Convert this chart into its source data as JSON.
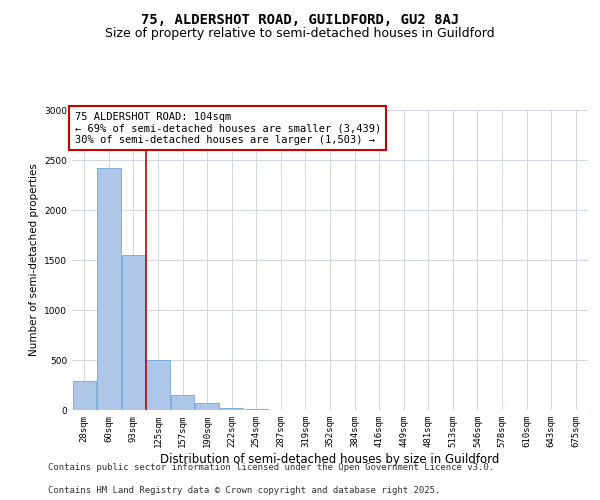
{
  "title_line1": "75, ALDERSHOT ROAD, GUILDFORD, GU2 8AJ",
  "title_line2": "Size of property relative to semi-detached houses in Guildford",
  "xlabel": "Distribution of semi-detached houses by size in Guildford",
  "ylabel": "Number of semi-detached properties",
  "categories": [
    "28sqm",
    "60sqm",
    "93sqm",
    "125sqm",
    "157sqm",
    "190sqm",
    "222sqm",
    "254sqm",
    "287sqm",
    "319sqm",
    "352sqm",
    "384sqm",
    "416sqm",
    "449sqm",
    "481sqm",
    "513sqm",
    "546sqm",
    "578sqm",
    "610sqm",
    "643sqm",
    "675sqm"
  ],
  "values": [
    290,
    2420,
    1550,
    500,
    150,
    68,
    20,
    10,
    4,
    2,
    1,
    1,
    0,
    0,
    0,
    0,
    0,
    0,
    0,
    0,
    0
  ],
  "bar_color": "#aec6e8",
  "bar_edge_color": "#5b9bd5",
  "vline_color": "#cc0000",
  "vline_pos": 2.5,
  "annotation_line1": "75 ALDERSHOT ROAD: 104sqm",
  "annotation_line2": "← 69% of semi-detached houses are smaller (3,439)",
  "annotation_line3": "30% of semi-detached houses are larger (1,503) →",
  "annotation_box_color": "#ffffff",
  "annotation_box_edge_color": "#cc0000",
  "ylim": [
    0,
    3000
  ],
  "yticks": [
    0,
    500,
    1000,
    1500,
    2000,
    2500,
    3000
  ],
  "footer_line1": "Contains HM Land Registry data © Crown copyright and database right 2025.",
  "footer_line2": "Contains public sector information licensed under the Open Government Licence v3.0.",
  "bg_color": "#ffffff",
  "grid_color": "#d0d8e8",
  "title1_fontsize": 10,
  "title2_fontsize": 9,
  "tick_fontsize": 6.5,
  "ylabel_fontsize": 7.5,
  "xlabel_fontsize": 8.5,
  "annotation_fontsize": 7.5,
  "footer_fontsize": 6.5
}
